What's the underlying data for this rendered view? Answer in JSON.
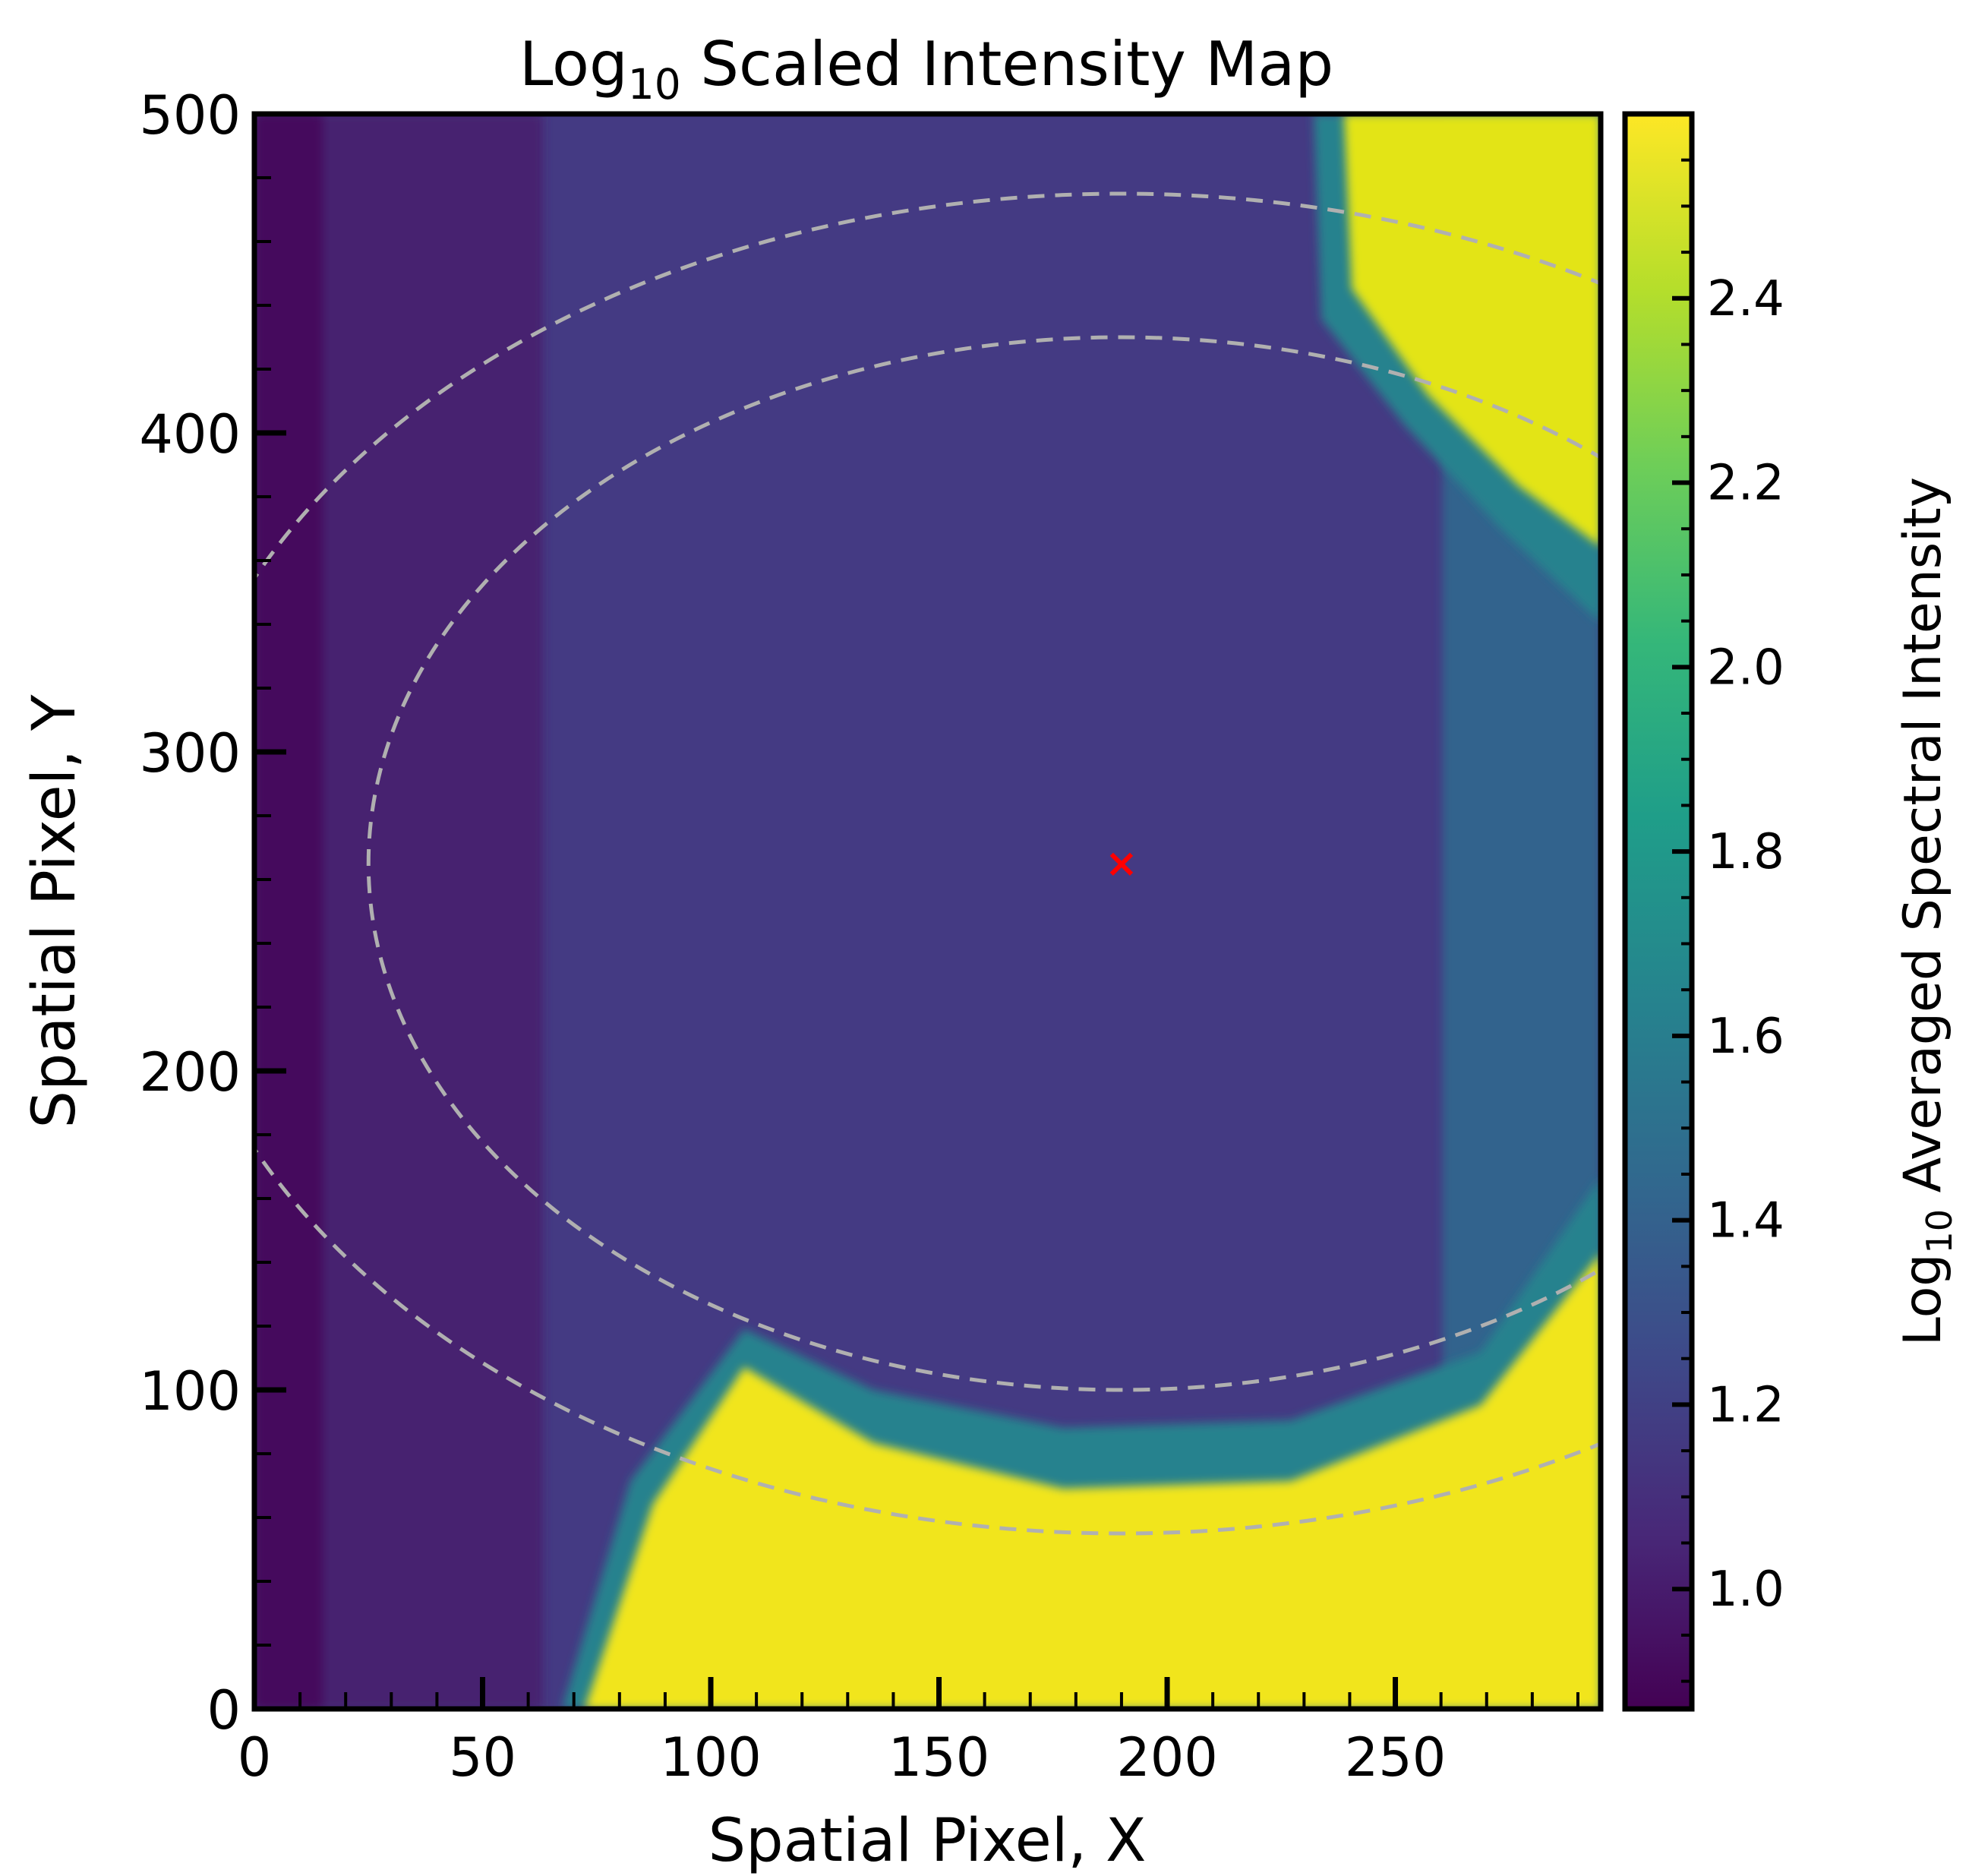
{
  "chart_data": {
    "type": "heatmap",
    "title_main": "Log",
    "title_sub": "10",
    "title_rest": " Scaled Intensity Map",
    "xlabel": "Spatial Pixel, X",
    "ylabel": "Spatial Pixel, Y",
    "xlim": [
      0,
      295
    ],
    "ylim": [
      0,
      500
    ],
    "xticks": [
      0,
      50,
      100,
      150,
      200,
      250
    ],
    "yticks": [
      0,
      100,
      200,
      300,
      400,
      500
    ],
    "colorbar": {
      "label_main": "Log",
      "label_sub": "10",
      "label_rest": " Averaged Spectral Intensity",
      "range": [
        0.87,
        2.6
      ],
      "ticks": [
        "1.0",
        "1.2",
        "1.4",
        "1.6",
        "1.8",
        "2.0",
        "2.2",
        "2.4"
      ],
      "colormap": "viridis"
    },
    "center_marker": {
      "x": 190,
      "y": 265,
      "symbol": "×",
      "color": "#ff0000"
    },
    "rings": [
      {
        "center_x": 190,
        "center_y": 265,
        "radius": 165,
        "style": "dashed",
        "color": "#b0b0b0"
      },
      {
        "center_x": 190,
        "center_y": 265,
        "radius": 210,
        "style": "dashed",
        "color": "#b0b0b0"
      }
    ],
    "intensity_regions": [
      {
        "region": "left band, x 0-60",
        "log10_intensity": 1.0
      },
      {
        "region": "middle, x 60-230",
        "log10_intensity": 1.2
      },
      {
        "region": "ring interior near center",
        "log10_intensity": 1.25
      },
      {
        "region": "right edge, x 270-295, y 150-400",
        "log10_intensity": 1.45
      },
      {
        "region": "bottom arc, y 0-100, x 75-295",
        "log10_intensity": 2.5
      },
      {
        "region": "top-right arc, y 380-500, x 240-295",
        "log10_intensity": 2.5
      }
    ],
    "grid": false,
    "legend": "none"
  }
}
